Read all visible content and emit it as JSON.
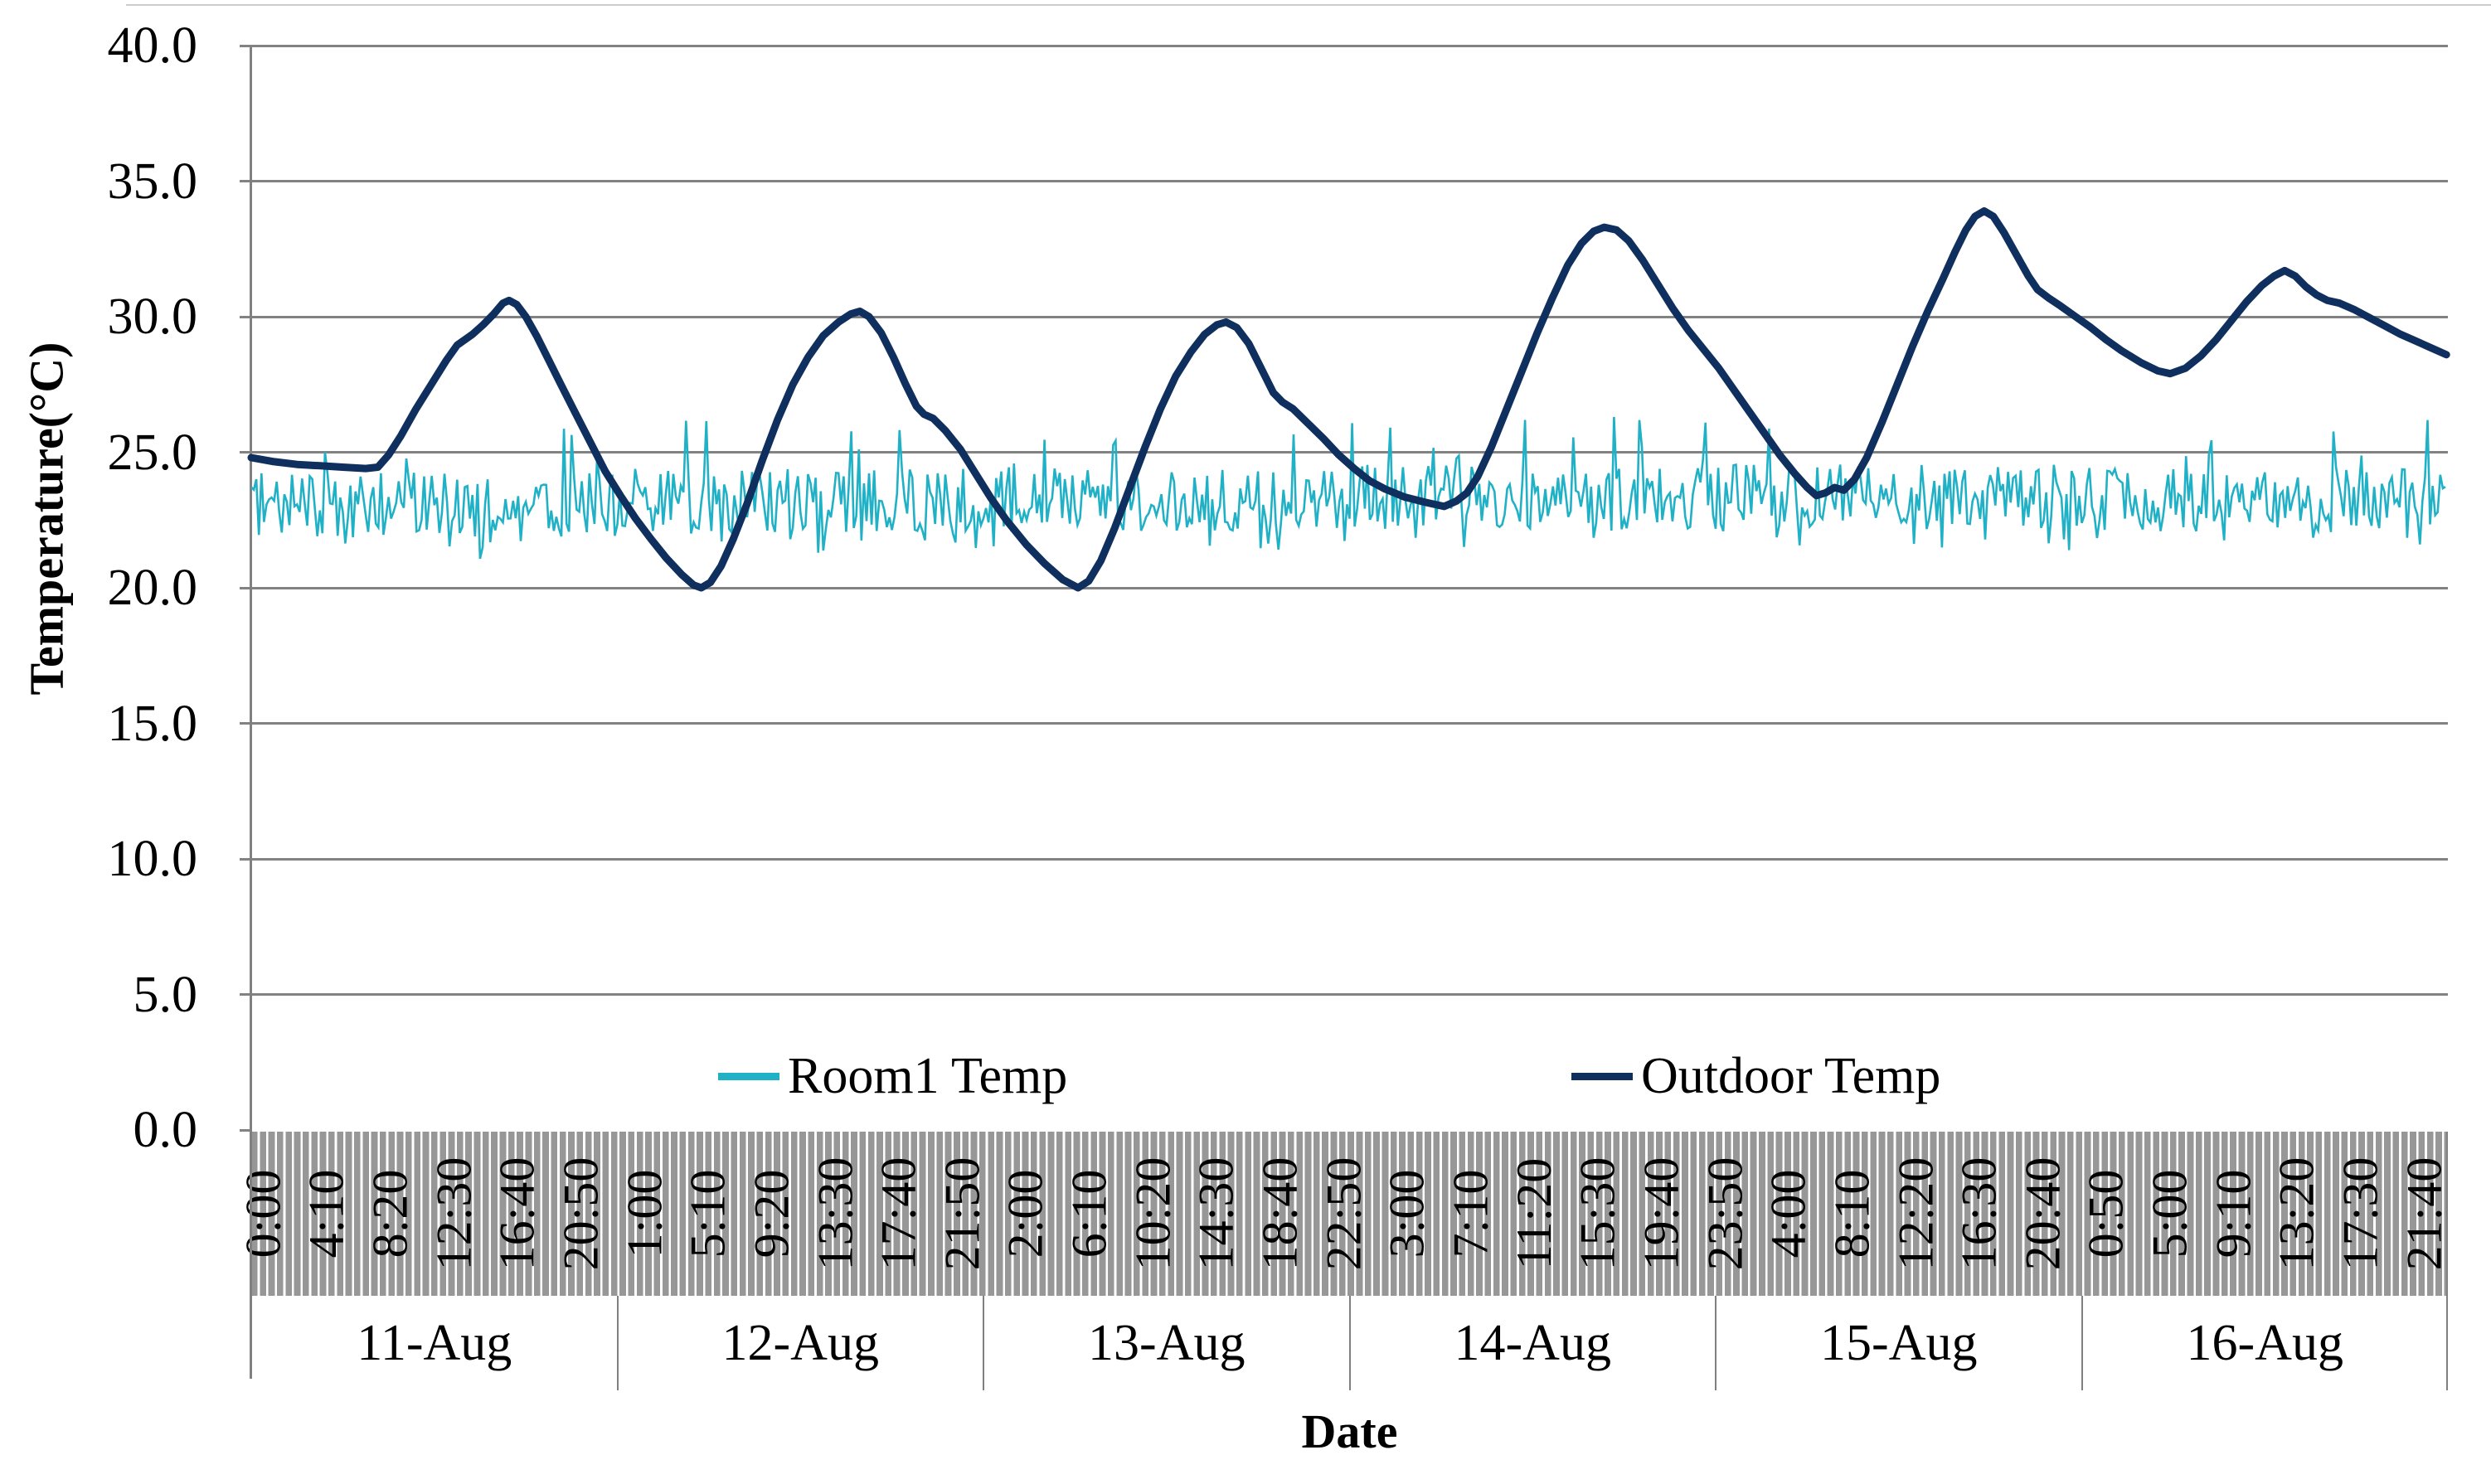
{
  "figure": {
    "y_axis": {
      "title": "Temperature(°C)",
      "tick_labels": [
        "40.0",
        "35.0",
        "30.0",
        "25.0",
        "20.0",
        "15.0",
        "10.0",
        "5.0",
        "0.0"
      ],
      "min": 0,
      "max": 40,
      "step": 5
    },
    "x_axis": {
      "title": "Date",
      "time_tick_labels": [
        "0:00",
        "4:10",
        "8:20",
        "12:30",
        "16:40",
        "20:50",
        "1:00",
        "5:10",
        "9:20",
        "13:30",
        "17:40",
        "21:50",
        "2:00",
        "6:10",
        "10:20",
        "14:30",
        "18:40",
        "22:50",
        "3:00",
        "7:10",
        "11:20",
        "15:30",
        "19:40",
        "23:50",
        "4:00",
        "8:10",
        "12:20",
        "16:30",
        "20:40",
        "0:50",
        "5:00",
        "9:10",
        "13:20",
        "17:30",
        "21:40"
      ],
      "date_labels": [
        "11-Aug",
        "12-Aug",
        "13-Aug",
        "14-Aug",
        "15-Aug",
        "16-Aug"
      ],
      "tick_interval_minutes": 250,
      "sample_interval_minutes": 10
    },
    "legend": [
      {
        "label": "Room1 Temp",
        "color": "#21B1C6"
      },
      {
        "label": "Outdoor Temp",
        "color": "#0F2F5E"
      }
    ],
    "colors": {
      "room1_line": "#21B1C6",
      "outdoor_line": "#0F2F5E",
      "gridline": "#828282",
      "axis_line": "#808080",
      "band_fill": "#979797",
      "band_stripe": "#FFFFFF",
      "text": "#000000"
    }
  },
  "chart_data": {
    "type": "line",
    "title": "",
    "xlabel": "Date",
    "ylabel": "Temperature(°C)",
    "ylim": [
      0,
      40
    ],
    "xlim": [
      0,
      144
    ],
    "x_unit": "hours since 11-Aug 00:00",
    "grid": "horizontal",
    "legend_position": "bottom-inside",
    "series": [
      {
        "name": "Room1 Temp",
        "color": "#21B1C6",
        "style": "noisy-10min-samples",
        "summary": {
          "mean": 23.2,
          "typical_range": [
            21.0,
            24.6
          ],
          "extreme_range": [
            20.3,
            26.3
          ]
        },
        "generator": {
          "seed": 20110811,
          "points": 864,
          "jitter": 1.2,
          "spike_prob": 0.05,
          "spike_extra": [
            1.1,
            3.0
          ],
          "dip_prob": 0.06,
          "dip_extra": [
            0.8,
            2.0
          ],
          "clamp": [
            20.3,
            26.35
          ],
          "day_mean_offsets": [
            -0.15,
            0.0,
            0.05,
            0.15,
            0.15,
            0.05
          ]
        }
      },
      {
        "name": "Outdoor Temp",
        "color": "#0F2F5E",
        "style": "smooth",
        "keypoints": [
          [
            0,
            24.8
          ],
          [
            1.5,
            24.65
          ],
          [
            3,
            24.55
          ],
          [
            4.5,
            24.5
          ],
          [
            6,
            24.45
          ],
          [
            7.5,
            24.4
          ],
          [
            8.3,
            24.45
          ],
          [
            9,
            24.9
          ],
          [
            9.8,
            25.6
          ],
          [
            10.8,
            26.6
          ],
          [
            11.8,
            27.5
          ],
          [
            12.8,
            28.4
          ],
          [
            13.5,
            28.95
          ],
          [
            14,
            29.15
          ],
          [
            14.5,
            29.35
          ],
          [
            15.2,
            29.7
          ],
          [
            15.9,
            30.1
          ],
          [
            16.5,
            30.5
          ],
          [
            16.9,
            30.6
          ],
          [
            17.4,
            30.45
          ],
          [
            18,
            30.0
          ],
          [
            18.7,
            29.3
          ],
          [
            19.5,
            28.4
          ],
          [
            20.3,
            27.5
          ],
          [
            21.2,
            26.5
          ],
          [
            22.2,
            25.4
          ],
          [
            23.2,
            24.3
          ],
          [
            24.2,
            23.4
          ],
          [
            25.2,
            22.55
          ],
          [
            26.2,
            21.8
          ],
          [
            27.2,
            21.1
          ],
          [
            28.2,
            20.5
          ],
          [
            29,
            20.1
          ],
          [
            29.5,
            20.0
          ],
          [
            30.1,
            20.2
          ],
          [
            30.8,
            20.8
          ],
          [
            31.6,
            21.8
          ],
          [
            32.5,
            23.1
          ],
          [
            33.5,
            24.7
          ],
          [
            34.5,
            26.2
          ],
          [
            35.5,
            27.5
          ],
          [
            36.5,
            28.5
          ],
          [
            37.5,
            29.3
          ],
          [
            38.5,
            29.8
          ],
          [
            39.3,
            30.1
          ],
          [
            39.9,
            30.2
          ],
          [
            40.5,
            30.0
          ],
          [
            41.3,
            29.4
          ],
          [
            42.1,
            28.5
          ],
          [
            42.9,
            27.5
          ],
          [
            43.6,
            26.7
          ],
          [
            44.1,
            26.4
          ],
          [
            44.7,
            26.25
          ],
          [
            45.5,
            25.8
          ],
          [
            46.5,
            25.1
          ],
          [
            47.5,
            24.2
          ],
          [
            48.5,
            23.3
          ],
          [
            49.5,
            22.5
          ],
          [
            50.8,
            21.6
          ],
          [
            52,
            20.9
          ],
          [
            53.2,
            20.3
          ],
          [
            54.2,
            20.0
          ],
          [
            54.9,
            20.25
          ],
          [
            55.7,
            21.0
          ],
          [
            56.6,
            22.2
          ],
          [
            57.6,
            23.7
          ],
          [
            58.6,
            25.2
          ],
          [
            59.6,
            26.6
          ],
          [
            60.6,
            27.8
          ],
          [
            61.6,
            28.7
          ],
          [
            62.5,
            29.35
          ],
          [
            63.3,
            29.7
          ],
          [
            63.9,
            29.8
          ],
          [
            64.6,
            29.6
          ],
          [
            65.4,
            29.0
          ],
          [
            66.2,
            28.1
          ],
          [
            67,
            27.2
          ],
          [
            67.6,
            26.85
          ],
          [
            68.3,
            26.6
          ],
          [
            69.3,
            26.05
          ],
          [
            70.3,
            25.5
          ],
          [
            71.3,
            24.9
          ],
          [
            72.3,
            24.4
          ],
          [
            73.3,
            23.95
          ],
          [
            74.3,
            23.65
          ],
          [
            75.6,
            23.35
          ],
          [
            77,
            23.15
          ],
          [
            78.2,
            23.0
          ],
          [
            79,
            23.2
          ],
          [
            79.7,
            23.5
          ],
          [
            80.4,
            24.1
          ],
          [
            81.3,
            25.2
          ],
          [
            82.3,
            26.6
          ],
          [
            83.3,
            28.0
          ],
          [
            84.3,
            29.4
          ],
          [
            85.3,
            30.7
          ],
          [
            86.3,
            31.9
          ],
          [
            87.2,
            32.7
          ],
          [
            88,
            33.15
          ],
          [
            88.7,
            33.3
          ],
          [
            89.5,
            33.2
          ],
          [
            90.3,
            32.8
          ],
          [
            91.2,
            32.1
          ],
          [
            92.2,
            31.2
          ],
          [
            93.2,
            30.3
          ],
          [
            94.2,
            29.5
          ],
          [
            95.2,
            28.8
          ],
          [
            96.2,
            28.1
          ],
          [
            97.2,
            27.3
          ],
          [
            98.2,
            26.5
          ],
          [
            99.2,
            25.7
          ],
          [
            100.2,
            24.9
          ],
          [
            101.2,
            24.2
          ],
          [
            102,
            23.7
          ],
          [
            102.6,
            23.4
          ],
          [
            103.2,
            23.5
          ],
          [
            103.8,
            23.7
          ],
          [
            104.4,
            23.6
          ],
          [
            105.1,
            24.0
          ],
          [
            105.9,
            24.8
          ],
          [
            106.9,
            26.1
          ],
          [
            107.9,
            27.5
          ],
          [
            108.9,
            28.9
          ],
          [
            109.9,
            30.2
          ],
          [
            110.9,
            31.4
          ],
          [
            111.7,
            32.4
          ],
          [
            112.4,
            33.2
          ],
          [
            113,
            33.7
          ],
          [
            113.6,
            33.9
          ],
          [
            114.2,
            33.7
          ],
          [
            114.9,
            33.1
          ],
          [
            115.7,
            32.3
          ],
          [
            116.5,
            31.5
          ],
          [
            117.1,
            31.0
          ],
          [
            117.8,
            30.7
          ],
          [
            118.6,
            30.4
          ],
          [
            119.6,
            30.0
          ],
          [
            120.6,
            29.6
          ],
          [
            121.6,
            29.15
          ],
          [
            122.6,
            28.75
          ],
          [
            123.9,
            28.3
          ],
          [
            125,
            28.0
          ],
          [
            125.8,
            27.9
          ],
          [
            126.8,
            28.1
          ],
          [
            127.8,
            28.55
          ],
          [
            128.8,
            29.15
          ],
          [
            129.8,
            29.85
          ],
          [
            130.8,
            30.55
          ],
          [
            131.8,
            31.15
          ],
          [
            132.6,
            31.5
          ],
          [
            133.3,
            31.7
          ],
          [
            134,
            31.5
          ],
          [
            134.7,
            31.1
          ],
          [
            135.4,
            30.8
          ],
          [
            136.1,
            30.6
          ],
          [
            136.9,
            30.5
          ],
          [
            137.9,
            30.25
          ],
          [
            138.9,
            29.95
          ],
          [
            139.9,
            29.65
          ],
          [
            140.9,
            29.35
          ],
          [
            141.9,
            29.1
          ],
          [
            142.9,
            28.85
          ],
          [
            143.9,
            28.6
          ]
        ]
      }
    ]
  }
}
